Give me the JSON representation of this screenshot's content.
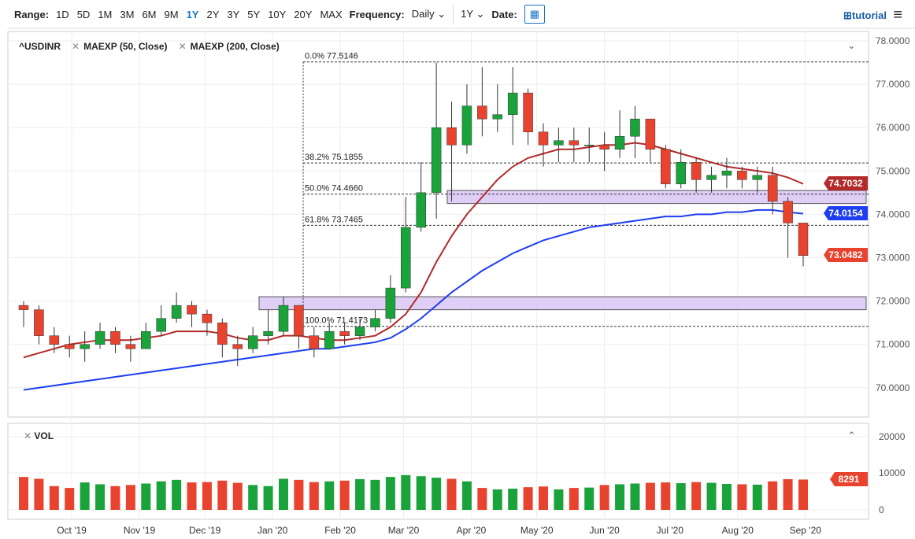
{
  "toolbar": {
    "range_label": "Range:",
    "ranges": [
      "1D",
      "5D",
      "1M",
      "3M",
      "6M",
      "9M",
      "1Y",
      "2Y",
      "3Y",
      "5Y",
      "10Y",
      "20Y",
      "MAX"
    ],
    "active_range": "1Y",
    "frequency_label": "Frequency:",
    "frequency": "Daily",
    "period": "1Y",
    "date_label": "Date:",
    "tutorial": "tutorial"
  },
  "legend": {
    "symbol": "^USDINR",
    "studies": [
      "MAEXP (50, Close)",
      "MAEXP (200, Close)"
    ],
    "volume": "VOL"
  },
  "colors": {
    "up": "#1aa33a",
    "down": "#e8432e",
    "ma50": "#b22a2a",
    "ma200": "#1d3ef0",
    "zone": "#d9c6f5"
  },
  "chart_data": {
    "type": "candlestick",
    "x": [
      "2019-09-09",
      "2019-09-16",
      "2019-09-23",
      "2019-09-30",
      "2019-10-07",
      "2019-10-14",
      "2019-10-21",
      "2019-10-28",
      "2019-11-04",
      "2019-11-11",
      "2019-11-18",
      "2019-11-25",
      "2019-12-02",
      "2019-12-09",
      "2019-12-16",
      "2019-12-23",
      "2019-12-30",
      "2020-01-06",
      "2020-01-13",
      "2020-01-20",
      "2020-01-27",
      "2020-02-03",
      "2020-02-10",
      "2020-02-17",
      "2020-02-24",
      "2020-03-02",
      "2020-03-09",
      "2020-03-16",
      "2020-03-23",
      "2020-03-30",
      "2020-04-06",
      "2020-04-13",
      "2020-04-20",
      "2020-04-27",
      "2020-05-04",
      "2020-05-11",
      "2020-05-18",
      "2020-05-25",
      "2020-06-01",
      "2020-06-08",
      "2020-06-15",
      "2020-06-22",
      "2020-06-29",
      "2020-07-06",
      "2020-07-13",
      "2020-07-20",
      "2020-07-27",
      "2020-08-03",
      "2020-08-10",
      "2020-08-17",
      "2020-08-24",
      "2020-08-31"
    ],
    "close": [
      71.8,
      71.2,
      71.0,
      70.9,
      71.0,
      71.3,
      71.0,
      70.9,
      71.3,
      71.6,
      71.9,
      71.7,
      71.5,
      71.0,
      70.9,
      71.2,
      71.3,
      71.9,
      71.2,
      70.9,
      71.3,
      71.2,
      71.4,
      71.6,
      72.3,
      73.7,
      74.5,
      76.0,
      75.6,
      76.5,
      76.2,
      76.3,
      76.8,
      75.9,
      75.6,
      75.7,
      75.6,
      75.6,
      75.5,
      75.8,
      76.2,
      75.5,
      74.7,
      75.2,
      74.8,
      74.9,
      75.0,
      74.8,
      74.9,
      74.3,
      73.8,
      73.05
    ],
    "high": [
      72.0,
      71.9,
      71.4,
      71.2,
      71.3,
      71.5,
      71.4,
      71.2,
      71.5,
      71.9,
      72.2,
      72.0,
      71.8,
      71.6,
      71.2,
      71.4,
      71.8,
      72.1,
      71.9,
      71.4,
      71.5,
      71.5,
      71.6,
      71.8,
      72.6,
      74.4,
      75.2,
      77.5,
      76.6,
      77.0,
      77.4,
      77.0,
      77.4,
      76.9,
      76.1,
      76.0,
      76.0,
      76.0,
      75.9,
      76.4,
      76.5,
      76.1,
      75.6,
      75.5,
      75.3,
      75.1,
      75.3,
      75.1,
      75.1,
      75.1,
      74.4,
      73.7
    ],
    "low": [
      71.4,
      71.0,
      70.8,
      70.7,
      70.6,
      70.9,
      70.8,
      70.6,
      70.9,
      71.2,
      71.5,
      71.4,
      71.2,
      70.7,
      70.5,
      70.8,
      71.0,
      71.2,
      70.9,
      70.7,
      71.0,
      71.0,
      71.1,
      71.3,
      71.5,
      72.2,
      73.6,
      73.9,
      74.3,
      75.4,
      75.8,
      75.9,
      75.6,
      75.6,
      75.1,
      75.2,
      75.2,
      75.2,
      75.0,
      75.3,
      75.3,
      75.2,
      74.6,
      74.6,
      74.5,
      74.5,
      74.6,
      74.6,
      74.5,
      74.0,
      73.0,
      72.8
    ],
    "ma50": [
      70.7,
      70.8,
      70.9,
      71.0,
      71.05,
      71.1,
      71.1,
      71.1,
      71.15,
      71.2,
      71.3,
      71.3,
      71.3,
      71.25,
      71.15,
      71.1,
      71.1,
      71.2,
      71.2,
      71.15,
      71.1,
      71.1,
      71.15,
      71.2,
      71.4,
      71.7,
      72.2,
      72.9,
      73.5,
      74.0,
      74.4,
      74.8,
      75.1,
      75.3,
      75.4,
      75.5,
      75.5,
      75.55,
      75.6,
      75.6,
      75.65,
      75.6,
      75.5,
      75.4,
      75.3,
      75.2,
      75.1,
      75.05,
      75.0,
      74.95,
      74.85,
      74.7032
    ],
    "ma200": [
      69.95,
      70.0,
      70.05,
      70.1,
      70.15,
      70.2,
      70.25,
      70.3,
      70.35,
      70.4,
      70.45,
      70.5,
      70.55,
      70.6,
      70.65,
      70.7,
      70.75,
      70.8,
      70.85,
      70.9,
      70.9,
      70.95,
      71.0,
      71.05,
      71.15,
      71.35,
      71.6,
      71.9,
      72.2,
      72.45,
      72.7,
      72.9,
      73.1,
      73.25,
      73.4,
      73.5,
      73.6,
      73.7,
      73.75,
      73.8,
      73.85,
      73.9,
      73.95,
      73.95,
      74.0,
      74.0,
      74.05,
      74.05,
      74.1,
      74.1,
      74.05,
      74.0154
    ],
    "volume": [
      9000,
      8500,
      6500,
      6000,
      7500,
      7000,
      6500,
      6800,
      7200,
      7800,
      8200,
      7500,
      7600,
      8000,
      7400,
      6800,
      6500,
      8500,
      8200,
      7600,
      7800,
      8000,
      8400,
      8200,
      9000,
      9500,
      9200,
      8800,
      8500,
      7800,
      6000,
      5600,
      5800,
      6200,
      6400,
      5600,
      6000,
      6100,
      6800,
      7000,
      7200,
      7400,
      7500,
      7300,
      7600,
      7400,
      7100,
      7000,
      6900,
      7800,
      8400,
      8291
    ],
    "ylim": [
      69.4,
      78.2
    ],
    "yticks": [
      "78.0000",
      "77.0000",
      "76.0000",
      "75.0000",
      "74.0000",
      "73.0000",
      "72.0000",
      "71.0000",
      "70.0000"
    ],
    "xticks": [
      "Oct '19",
      "Nov '19",
      "Dec '19",
      "Jan '20",
      "Feb '20",
      "Mar '20",
      "Apr '20",
      "May '20",
      "Jun '20",
      "Jul '20",
      "Aug '20",
      "Sep '20"
    ],
    "vol_ticks": [
      "20000",
      "10000",
      "0"
    ],
    "fib_levels": [
      {
        "label": "0.0% 77.5146",
        "value": 77.5146
      },
      {
        "label": "38.2% 75.1855",
        "value": 75.1855
      },
      {
        "label": "50.0% 74.4660",
        "value": 74.466
      },
      {
        "label": "61.8% 73.7465",
        "value": 73.7465
      },
      {
        "label": "100.0% 71.4173",
        "value": 71.4173
      }
    ],
    "zones": [
      [
        74.25,
        74.55
      ],
      [
        71.8,
        72.1
      ]
    ],
    "last_tags": {
      "ma50": "74.7032",
      "ma200": "74.0154",
      "close": "73.0482",
      "volume": "8291"
    }
  }
}
